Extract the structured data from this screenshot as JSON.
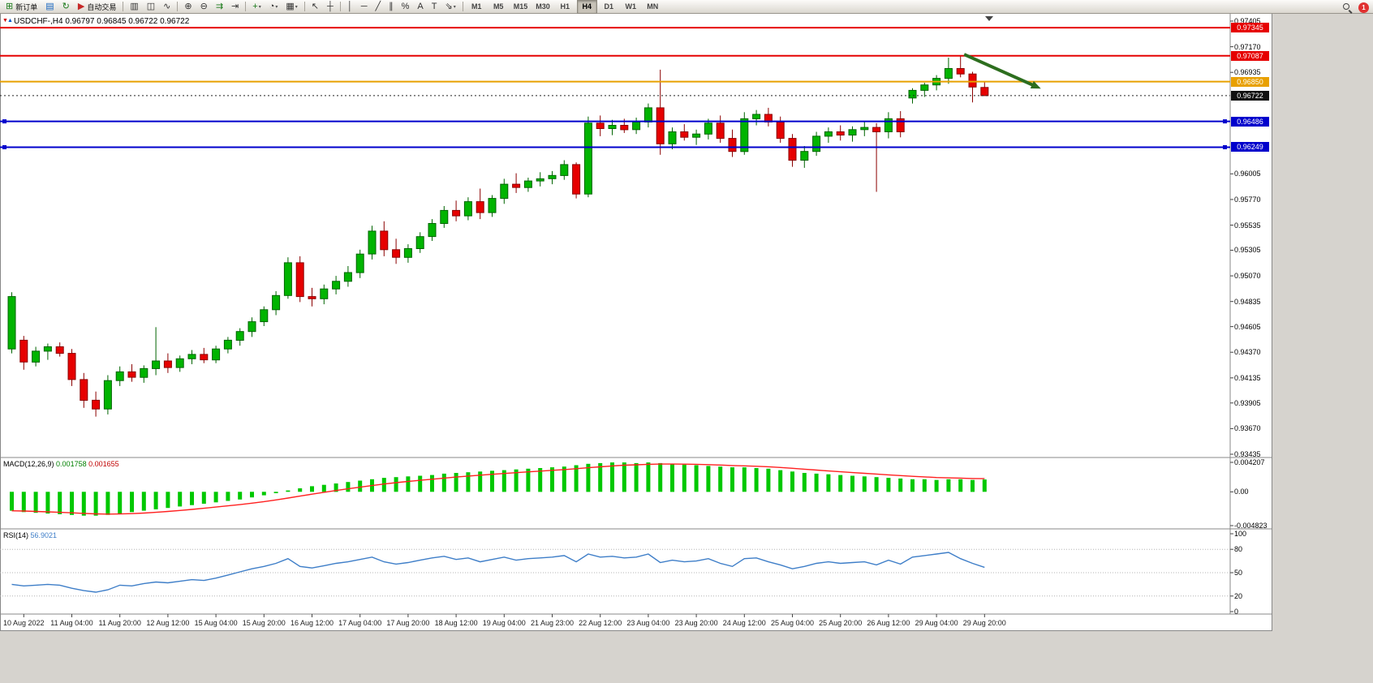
{
  "toolbar": {
    "groups": [
      {
        "items": [
          {
            "icon": "⊞",
            "color": "#1a7a1a",
            "label": "新订单",
            "name": "new-order-button"
          },
          {
            "icon": "▤",
            "color": "#1565c0",
            "name": "profiles-button"
          },
          {
            "icon": "↻",
            "color": "#1a7a1a",
            "name": "refresh-button"
          },
          {
            "icon": "▶",
            "color": "#c62828",
            "label": "自动交易",
            "name": "auto-trading-button"
          }
        ]
      },
      {
        "items": [
          {
            "icon": "▥",
            "color": "#333333",
            "name": "bar-chart-button"
          },
          {
            "icon": "◫",
            "color": "#333333",
            "name": "candlestick-chart-button"
          },
          {
            "icon": "∿",
            "color": "#333333",
            "name": "line-chart-button"
          }
        ]
      },
      {
        "items": [
          {
            "icon": "⊕",
            "color": "#333333",
            "name": "zoom-in-button"
          },
          {
            "icon": "⊖",
            "color": "#333333",
            "name": "zoom-out-button"
          },
          {
            "icon": "⇉",
            "color": "#1a7a1a",
            "name": "auto-scroll-button"
          },
          {
            "icon": "⇥",
            "color": "#333333",
            "name": "chart-shift-button"
          }
        ]
      },
      {
        "items": [
          {
            "icon": "+",
            "color": "#1a7a1a",
            "name": "add-indicator-button",
            "dropdown": true
          },
          {
            "icon": "◔",
            "color": "#333333",
            "name": "periods-button",
            "dropdown": true
          },
          {
            "icon": "▦",
            "color": "#333333",
            "name": "templates-button",
            "dropdown": true
          }
        ]
      },
      {
        "items": [
          {
            "icon": "↖",
            "color": "#333333",
            "name": "cursor-button"
          },
          {
            "icon": "┼",
            "color": "#333333",
            "name": "crosshair-button"
          }
        ]
      },
      {
        "items": [
          {
            "icon": "│",
            "color": "#333333",
            "name": "vertical-line-button"
          },
          {
            "icon": "─",
            "color": "#333333",
            "name": "horizontal-line-button"
          },
          {
            "icon": "╱",
            "color": "#333333",
            "name": "trendline-button"
          },
          {
            "icon": "∥",
            "color": "#333333",
            "name": "channel-button"
          },
          {
            "icon": "%",
            "color": "#333333",
            "name": "fibonacci-button"
          },
          {
            "icon": "A",
            "color": "#333333",
            "name": "text-button"
          },
          {
            "icon": "T",
            "color": "#333333",
            "name": "text-label-button"
          },
          {
            "icon": "⇘",
            "color": "#333333",
            "name": "arrows-button",
            "dropdown": true
          }
        ]
      }
    ],
    "timeframes": [
      "M1",
      "M5",
      "M15",
      "M30",
      "H1",
      "H4",
      "D1",
      "W1",
      "MN"
    ],
    "active_timeframe": "H4",
    "notification_count": "1"
  },
  "chart": {
    "symbol_period": "USDCHF-,H4",
    "ohlc_text": "0.96797 0.96845 0.96722 0.96722",
    "price_axis_labels": [
      {
        "text": "0.97405",
        "price": 0.97405
      },
      {
        "text": "0.97170",
        "price": 0.9717
      },
      {
        "text": "0.96935",
        "price": 0.96935
      },
      {
        "text": "0.96005",
        "price": 0.96005
      },
      {
        "text": "0.95770",
        "price": 0.9577
      },
      {
        "text": "0.95535",
        "price": 0.95535
      },
      {
        "text": "0.95305",
        "price": 0.95305
      },
      {
        "text": "0.95070",
        "price": 0.9507
      },
      {
        "text": "0.94835",
        "price": 0.94835
      },
      {
        "text": "0.94605",
        "price": 0.94605
      },
      {
        "text": "0.94370",
        "price": 0.9437
      },
      {
        "text": "0.94135",
        "price": 0.94135
      },
      {
        "text": "0.93905",
        "price": 0.93905
      },
      {
        "text": "0.93670",
        "price": 0.9367
      },
      {
        "text": "0.93435",
        "price": 0.93435
      }
    ],
    "badges": [
      {
        "text": "0.97345",
        "price": 0.97345,
        "bg": "#e60000",
        "name": "resistance-1"
      },
      {
        "text": "0.97087",
        "price": 0.97087,
        "bg": "#e60000",
        "name": "resistance-2"
      },
      {
        "text": "0.96850",
        "price": 0.9685,
        "bg": "#e8a000",
        "name": "orange-level"
      },
      {
        "text": "0.96722",
        "price": 0.96722,
        "bg": "#111111",
        "name": "current-price"
      },
      {
        "text": "0.96486",
        "price": 0.96486,
        "bg": "#0000cc",
        "name": "support-1"
      },
      {
        "text": "0.96249",
        "price": 0.96249,
        "bg": "#0000cc",
        "name": "support-2"
      }
    ],
    "hlines": [
      {
        "price": 0.97345,
        "color": "#e60000",
        "style": "solid",
        "width": 2,
        "name": "resistance-line-1"
      },
      {
        "price": 0.97087,
        "color": "#e60000",
        "style": "solid",
        "width": 2,
        "name": "resistance-line-2"
      },
      {
        "price": 0.9685,
        "color": "#e8a000",
        "style": "solid",
        "width": 2,
        "name": "pivot-line-orange"
      },
      {
        "price": 0.96722,
        "color": "#222222",
        "style": "dotted",
        "width": 1,
        "name": "current-price-line"
      },
      {
        "price": 0.96486,
        "color": "#0000cc",
        "style": "solid",
        "width": 2,
        "handles": true,
        "name": "support-line-1"
      },
      {
        "price": 0.96249,
        "color": "#0000cc",
        "style": "solid",
        "width": 2,
        "handles": true,
        "name": "support-line-2"
      }
    ],
    "arrow": {
      "color": "#2d6e1e",
      "from": {
        "index": 79.3,
        "price": 0.971
      },
      "to": {
        "index": 85.2,
        "price": 0.9681
      }
    }
  },
  "chart_data": [
    {
      "type": "candlestick",
      "title": "USDCHF-,H4",
      "ylim": [
        0.93435,
        0.97405
      ],
      "label_start_index": 1,
      "label_step": 4,
      "x_labels": [
        "10 Aug 2022",
        "11 Aug 04:00",
        "11 Aug 20:00",
        "12 Aug 12:00",
        "15 Aug 04:00",
        "15 Aug 20:00",
        "16 Aug 12:00",
        "17 Aug 04:00",
        "17 Aug 20:00",
        "18 Aug 12:00",
        "19 Aug 04:00",
        "21 Aug 23:00",
        "22 Aug 12:00",
        "23 Aug 04:00",
        "23 Aug 20:00",
        "24 Aug 12:00",
        "25 Aug 04:00",
        "25 Aug 20:00",
        "26 Aug 12:00",
        "29 Aug 04:00",
        "29 Aug 20:00"
      ],
      "candles": [
        [
          0.944,
          0.9492,
          0.9436,
          0.9488
        ],
        [
          0.9448,
          0.9452,
          0.9421,
          0.9428
        ],
        [
          0.9428,
          0.9442,
          0.9424,
          0.9438
        ],
        [
          0.9438,
          0.9445,
          0.943,
          0.9442
        ],
        [
          0.9442,
          0.9446,
          0.9433,
          0.9436
        ],
        [
          0.9436,
          0.944,
          0.9406,
          0.9412
        ],
        [
          0.9412,
          0.9418,
          0.9386,
          0.9393
        ],
        [
          0.9393,
          0.9401,
          0.9378,
          0.9385
        ],
        [
          0.9385,
          0.9416,
          0.938,
          0.9411
        ],
        [
          0.9411,
          0.9424,
          0.9406,
          0.9419
        ],
        [
          0.9419,
          0.9426,
          0.941,
          0.9414
        ],
        [
          0.9414,
          0.9425,
          0.9409,
          0.9422
        ],
        [
          0.9422,
          0.946,
          0.9416,
          0.9429
        ],
        [
          0.9429,
          0.9436,
          0.9418,
          0.9423
        ],
        [
          0.9423,
          0.9434,
          0.9419,
          0.9431
        ],
        [
          0.9431,
          0.9439,
          0.9426,
          0.9435
        ],
        [
          0.9435,
          0.9441,
          0.9427,
          0.943
        ],
        [
          0.943,
          0.9443,
          0.9427,
          0.944
        ],
        [
          0.944,
          0.9451,
          0.9436,
          0.9448
        ],
        [
          0.9448,
          0.9459,
          0.9443,
          0.9456
        ],
        [
          0.9456,
          0.9469,
          0.9451,
          0.9465
        ],
        [
          0.9465,
          0.9479,
          0.9461,
          0.9476
        ],
        [
          0.9476,
          0.9493,
          0.9471,
          0.9489
        ],
        [
          0.9489,
          0.9524,
          0.9486,
          0.9519
        ],
        [
          0.9519,
          0.9525,
          0.9483,
          0.9488
        ],
        [
          0.9488,
          0.9496,
          0.9479,
          0.9486
        ],
        [
          0.9486,
          0.9499,
          0.9481,
          0.9495
        ],
        [
          0.9495,
          0.9507,
          0.949,
          0.9502
        ],
        [
          0.9502,
          0.9516,
          0.9497,
          0.951
        ],
        [
          0.951,
          0.9531,
          0.9505,
          0.9527
        ],
        [
          0.9527,
          0.9553,
          0.9522,
          0.9548
        ],
        [
          0.9548,
          0.9557,
          0.9525,
          0.9531
        ],
        [
          0.9531,
          0.9541,
          0.9518,
          0.9524
        ],
        [
          0.9524,
          0.9536,
          0.9519,
          0.9532
        ],
        [
          0.9532,
          0.9547,
          0.9528,
          0.9543
        ],
        [
          0.9543,
          0.9559,
          0.9539,
          0.9555
        ],
        [
          0.9555,
          0.9571,
          0.9551,
          0.9567
        ],
        [
          0.9567,
          0.9576,
          0.9557,
          0.9562
        ],
        [
          0.9562,
          0.9579,
          0.9558,
          0.9575
        ],
        [
          0.9575,
          0.9587,
          0.9559,
          0.9565
        ],
        [
          0.9565,
          0.9581,
          0.9561,
          0.9578
        ],
        [
          0.9578,
          0.9596,
          0.9573,
          0.9591
        ],
        [
          0.9591,
          0.9601,
          0.9583,
          0.9588
        ],
        [
          0.9588,
          0.9597,
          0.9584,
          0.9594
        ],
        [
          0.9594,
          0.9602,
          0.9589,
          0.9596
        ],
        [
          0.9596,
          0.9603,
          0.9591,
          0.9599
        ],
        [
          0.9599,
          0.9613,
          0.9595,
          0.9609
        ],
        [
          0.9609,
          0.9611,
          0.9578,
          0.9582
        ],
        [
          0.9582,
          0.9653,
          0.9579,
          0.9647
        ],
        [
          0.9647,
          0.9654,
          0.9635,
          0.9642
        ],
        [
          0.9642,
          0.965,
          0.9636,
          0.9645
        ],
        [
          0.9645,
          0.9651,
          0.9638,
          0.9641
        ],
        [
          0.9641,
          0.9652,
          0.9637,
          0.9648
        ],
        [
          0.9648,
          0.9665,
          0.9643,
          0.9661
        ],
        [
          0.9661,
          0.9696,
          0.9618,
          0.9628
        ],
        [
          0.9628,
          0.9643,
          0.9623,
          0.9639
        ],
        [
          0.9639,
          0.9646,
          0.9631,
          0.9634
        ],
        [
          0.9634,
          0.9641,
          0.9627,
          0.9637
        ],
        [
          0.9637,
          0.9651,
          0.9632,
          0.9647
        ],
        [
          0.9647,
          0.9654,
          0.9629,
          0.9633
        ],
        [
          0.9633,
          0.9641,
          0.9616,
          0.9621
        ],
        [
          0.9621,
          0.9657,
          0.9618,
          0.9651
        ],
        [
          0.9651,
          0.9659,
          0.9645,
          0.9655
        ],
        [
          0.9655,
          0.9661,
          0.9644,
          0.9648
        ],
        [
          0.9648,
          0.9653,
          0.9629,
          0.9633
        ],
        [
          0.9633,
          0.9637,
          0.9607,
          0.9613
        ],
        [
          0.9613,
          0.9626,
          0.9606,
          0.9621
        ],
        [
          0.9621,
          0.9639,
          0.9617,
          0.9635
        ],
        [
          0.9635,
          0.9643,
          0.9629,
          0.9639
        ],
        [
          0.9639,
          0.9645,
          0.9631,
          0.9636
        ],
        [
          0.9636,
          0.9644,
          0.963,
          0.9641
        ],
        [
          0.9641,
          0.9648,
          0.9635,
          0.9643
        ],
        [
          0.9643,
          0.9647,
          0.9584,
          0.9639
        ],
        [
          0.9639,
          0.9657,
          0.9633,
          0.9651
        ],
        [
          0.9651,
          0.9658,
          0.9634,
          0.9639
        ],
        [
          0.967,
          0.9679,
          0.9665,
          0.9677
        ],
        [
          0.9677,
          0.9684,
          0.9671,
          0.9682
        ],
        [
          0.9682,
          0.9691,
          0.9677,
          0.9688
        ],
        [
          0.9688,
          0.9707,
          0.9683,
          0.9697
        ],
        [
          0.9697,
          0.9709,
          0.9689,
          0.9692
        ],
        [
          0.9692,
          0.9694,
          0.9666,
          0.968
        ],
        [
          0.96797,
          0.96845,
          0.96722,
          0.96722
        ]
      ]
    },
    {
      "type": "bar",
      "name": "MACD(12,26,9)",
      "value_main": "0.001758",
      "value_signal": "0.001655",
      "ylim": [
        -0.004823,
        0.004207
      ],
      "axis_labels": [
        {
          "text": "0.004207",
          "value": 0.004207
        },
        {
          "text": "0.00",
          "value": 0
        },
        {
          "text": "-0.004823",
          "value": -0.004823
        }
      ],
      "values": [
        -0.0027,
        -0.0029,
        -0.003,
        -0.0031,
        -0.0032,
        -0.0033,
        -0.0034,
        -0.0034,
        -0.0033,
        -0.0031,
        -0.0029,
        -0.0027,
        -0.0025,
        -0.0023,
        -0.0021,
        -0.0019,
        -0.0017,
        -0.0015,
        -0.0013,
        -0.0011,
        -0.0008,
        -0.0005,
        -0.0002,
        0.0002,
        0.0005,
        0.0008,
        0.001,
        0.0012,
        0.0014,
        0.0016,
        0.0018,
        0.002,
        0.0021,
        0.0022,
        0.0023,
        0.0024,
        0.0026,
        0.0027,
        0.0028,
        0.0029,
        0.003,
        0.0031,
        0.0032,
        0.0033,
        0.0034,
        0.0035,
        0.0036,
        0.0038,
        0.004,
        0.0041,
        0.0042,
        0.0042,
        0.0041,
        0.0042,
        0.0041,
        0.004,
        0.0039,
        0.0038,
        0.0037,
        0.0036,
        0.0035,
        0.0035,
        0.0034,
        0.0033,
        0.0031,
        0.0029,
        0.0027,
        0.0026,
        0.0025,
        0.0024,
        0.0023,
        0.0022,
        0.0021,
        0.002,
        0.0019,
        0.0018,
        0.0018,
        0.0017,
        0.0018,
        0.0018,
        0.0017,
        0.00176
      ]
    },
    {
      "type": "line",
      "name": "RSI(14)",
      "value": "56.9021",
      "ylim": [
        0,
        100
      ],
      "levels": [
        80,
        50,
        20
      ],
      "axis_labels": [
        {
          "text": "100",
          "value": 100
        },
        {
          "text": "80",
          "value": 80
        },
        {
          "text": "50",
          "value": 50
        },
        {
          "text": "20",
          "value": 20
        },
        {
          "text": "0",
          "value": 0
        }
      ],
      "values": [
        35,
        33,
        34,
        35,
        34,
        30,
        27,
        25,
        28,
        34,
        33,
        36,
        38,
        37,
        39,
        41,
        40,
        43,
        47,
        51,
        55,
        58,
        62,
        68,
        58,
        56,
        59,
        62,
        64,
        67,
        70,
        64,
        61,
        63,
        66,
        69,
        71,
        67,
        69,
        64,
        67,
        70,
        66,
        68,
        69,
        70,
        72,
        64,
        74,
        70,
        71,
        69,
        70,
        74,
        63,
        66,
        64,
        65,
        68,
        62,
        58,
        68,
        69,
        64,
        60,
        55,
        58,
        62,
        64,
        62,
        63,
        64,
        60,
        66,
        61,
        70,
        72,
        74,
        76,
        68,
        62,
        56.9
      ]
    }
  ],
  "colors": {
    "up": "#00b400",
    "up_stroke": "#006400",
    "down": "#e60000",
    "down_stroke": "#8b0000",
    "macd_hist": "#00c800",
    "macd_signal": "#ff2020",
    "rsi_line": "#3e7ec8"
  }
}
